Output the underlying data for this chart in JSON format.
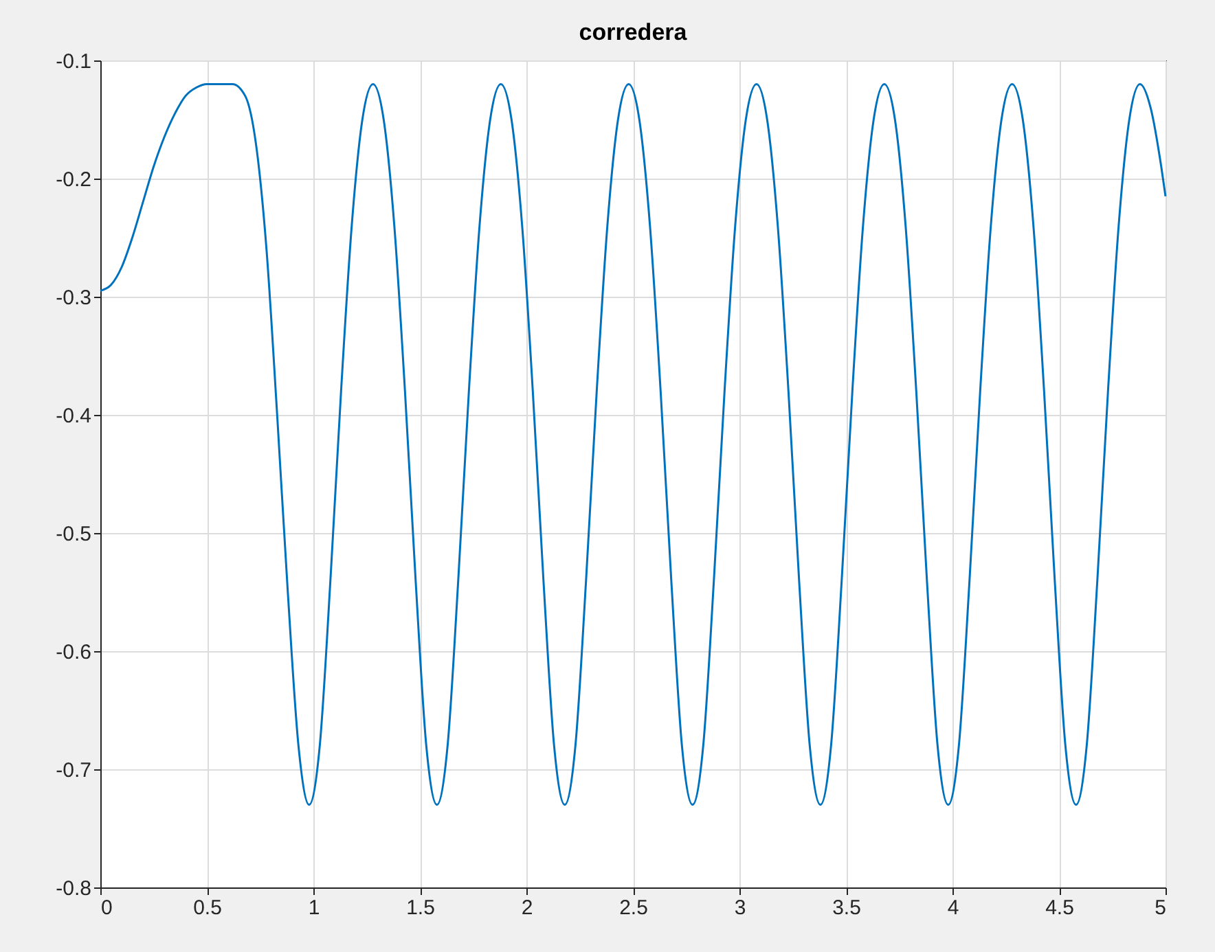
{
  "chart_data": {
    "type": "line",
    "title": "corredera",
    "x": [
      0,
      0.05,
      0.1,
      0.15,
      0.2,
      0.25,
      0.3,
      0.35,
      0.4,
      0.45,
      0.5,
      0.55,
      0.62,
      0.68,
      0.73,
      0.78,
      0.83,
      0.88,
      0.93,
      0.98,
      1.03,
      1.08,
      1.13,
      1.18,
      1.23,
      1.28,
      1.33,
      1.38,
      1.43,
      1.48,
      1.53,
      1.58,
      1.63,
      1.68,
      1.73,
      1.78,
      1.83,
      1.88,
      1.93,
      1.98,
      2.03,
      2.08,
      2.13,
      2.18,
      2.23,
      2.28,
      2.33,
      2.38,
      2.43,
      2.48,
      2.53,
      2.58,
      2.63,
      2.68,
      2.73,
      2.78,
      2.83,
      2.88,
      2.93,
      2.98,
      3.03,
      3.08,
      3.13,
      3.18,
      3.23,
      3.28,
      3.33,
      3.38,
      3.43,
      3.48,
      3.53,
      3.58,
      3.63,
      3.68,
      3.73,
      3.78,
      3.83,
      3.88,
      3.93,
      3.98,
      4.03,
      4.08,
      4.13,
      4.18,
      4.23,
      4.28,
      4.33,
      4.38,
      4.43,
      4.48,
      4.53,
      4.58,
      4.63,
      4.68,
      4.73,
      4.78,
      4.83,
      4.88,
      4.93,
      4.98,
      5.0
    ],
    "series": [
      {
        "color": "#0072bd",
        "values": [
          -0.295,
          -0.29,
          -0.275,
          -0.25,
          -0.22,
          -0.19,
          -0.165,
          -0.145,
          -0.13,
          -0.123,
          -0.12,
          -0.12,
          -0.12,
          -0.13,
          -0.17,
          -0.26,
          -0.4,
          -0.55,
          -0.68,
          -0.73,
          -0.68,
          -0.54,
          -0.38,
          -0.24,
          -0.15,
          -0.12,
          -0.15,
          -0.24,
          -0.38,
          -0.54,
          -0.68,
          -0.73,
          -0.68,
          -0.54,
          -0.38,
          -0.24,
          -0.15,
          -0.12,
          -0.15,
          -0.24,
          -0.38,
          -0.54,
          -0.68,
          -0.73,
          -0.68,
          -0.54,
          -0.38,
          -0.24,
          -0.15,
          -0.12,
          -0.15,
          -0.24,
          -0.38,
          -0.54,
          -0.68,
          -0.73,
          -0.68,
          -0.54,
          -0.38,
          -0.24,
          -0.15,
          -0.12,
          -0.15,
          -0.24,
          -0.38,
          -0.54,
          -0.68,
          -0.73,
          -0.68,
          -0.54,
          -0.38,
          -0.24,
          -0.15,
          -0.12,
          -0.15,
          -0.24,
          -0.38,
          -0.54,
          -0.68,
          -0.73,
          -0.68,
          -0.54,
          -0.38,
          -0.24,
          -0.15,
          -0.12,
          -0.15,
          -0.24,
          -0.38,
          -0.54,
          -0.68,
          -0.73,
          -0.68,
          -0.54,
          -0.38,
          -0.24,
          -0.15,
          -0.12,
          -0.14,
          -0.19,
          -0.215
        ]
      }
    ],
    "xlim": [
      0,
      5
    ],
    "ylim": [
      -0.8,
      -0.1
    ],
    "xticks": [
      0,
      0.5,
      1,
      1.5,
      2,
      2.5,
      3,
      3.5,
      4,
      4.5,
      5
    ],
    "yticks": [
      -0.8,
      -0.7,
      -0.6,
      -0.5,
      -0.4,
      -0.3,
      -0.2,
      -0.1
    ],
    "grid": true,
    "line_style": "solid"
  }
}
